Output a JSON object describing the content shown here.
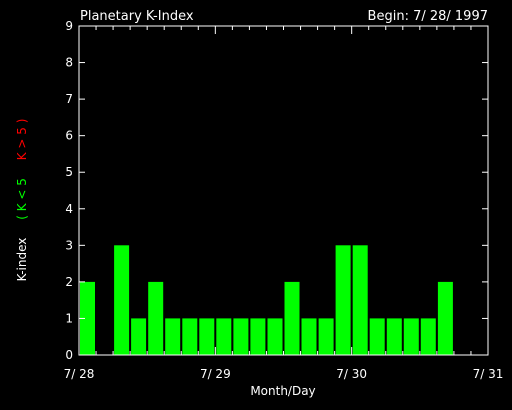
{
  "chart_data": {
    "type": "bar",
    "title": "Planetary K-Index",
    "begin_label": "Begin: 7/ 28/ 1997",
    "xlabel": "Month/Day",
    "ylabel": {
      "prefix": "K-index",
      "green_part": "( K < 5",
      "red_part": "K > 5 )"
    },
    "ylim": [
      0,
      9
    ],
    "yticks": [
      "0",
      "1",
      "2",
      "3",
      "4",
      "5",
      "6",
      "7",
      "8",
      "9"
    ],
    "xticks": [
      "7/ 28",
      "7/ 29",
      "7/ 30",
      "7/ 31"
    ],
    "xrange_days": 3,
    "bar_interval_hours": 3,
    "values": [
      2,
      0,
      3,
      1,
      2,
      1,
      1,
      1,
      1,
      1,
      1,
      1,
      2,
      1,
      1,
      3,
      3,
      1,
      1,
      1,
      1,
      2,
      0,
      0
    ],
    "colors": {
      "bar_low": "#00ff00",
      "bar_high": "#ff0000",
      "axis": "#ffffff",
      "background": "#000000"
    }
  }
}
